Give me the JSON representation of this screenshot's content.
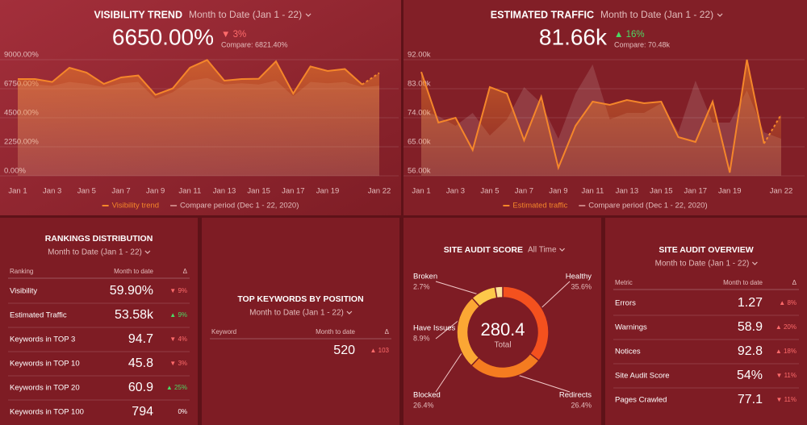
{
  "chart_data": [
    {
      "type": "line",
      "title": "VISIBILITY TREND",
      "subtitle": "Month to Date (Jan 1 - 22)",
      "headline": "6650.00%",
      "delta": "▼ 3%",
      "delta_color": "#ff6b6b",
      "compare": "Compare: 6821.40%",
      "categories": [
        "Jan 1",
        null,
        "Jan 3",
        null,
        "Jan 5",
        null,
        "Jan 7",
        null,
        "Jan 9",
        null,
        "Jan 11",
        null,
        "Jan 13",
        null,
        "Jan 15",
        null,
        "Jan 17",
        null,
        "Jan 19",
        null,
        null,
        "Jan 22"
      ],
      "series": [
        {
          "name": "Visibility trend",
          "color": "#f5862a",
          "values": [
            7125,
            7125,
            6900,
            8000,
            7625,
            6750,
            7250,
            7400,
            5900,
            6400,
            8000,
            8600,
            7000,
            7125,
            7150,
            8500,
            6000,
            8100,
            7750,
            7900,
            6700,
            7600
          ]
        },
        {
          "name": "Compare period (Dec 1 - 22, 2020)",
          "color": "#c98080",
          "values": [
            6800,
            6700,
            6600,
            6900,
            6750,
            6500,
            6800,
            6900,
            5600,
            6100,
            7000,
            7200,
            6700,
            6800,
            6700,
            7000,
            5800,
            6900,
            6800,
            6900,
            6500,
            6600
          ]
        }
      ],
      "ylim": [
        0,
        9000
      ],
      "yticks": [
        {
          "value": 0,
          "label": "0.00%"
        },
        {
          "value": 2250,
          "label": "2250.00%"
        },
        {
          "value": 4500,
          "label": "4500.00%"
        },
        {
          "value": 6750,
          "label": "6750.00%"
        },
        {
          "value": 9000,
          "label": "9000.00%"
        }
      ],
      "grid": true,
      "last_segment_dashed": true
    },
    {
      "type": "line",
      "title": "ESTIMATED TRAFFIC",
      "subtitle": "Month to Date (Jan 1 - 22)",
      "headline": "81.66k",
      "delta": "▲ 16%",
      "delta_color": "#4cd964",
      "compare": "Compare: 70.48k",
      "categories": [
        "Jan 1",
        null,
        "Jan 3",
        null,
        "Jan 5",
        null,
        "Jan 7",
        null,
        "Jan 9",
        null,
        "Jan 11",
        null,
        "Jan 13",
        null,
        "Jan 15",
        null,
        "Jan 17",
        null,
        "Jan 19",
        null,
        null,
        "Jan 22"
      ],
      "series": [
        {
          "name": "Estimated traffic",
          "color": "#f5862a",
          "values": [
            86.7,
            71,
            72.5,
            62.5,
            82,
            80,
            65.5,
            79,
            57,
            70,
            77.5,
            76.5,
            78,
            77,
            77.5,
            66.5,
            65,
            77.5,
            55.5,
            90.5,
            64.5,
            73.5
          ]
        },
        {
          "name": "Compare period (Dec 1 - 22, 2020)",
          "color": "#c98080",
          "values": [
            75,
            73,
            70,
            74,
            67,
            72,
            82,
            77,
            66,
            80,
            89,
            72,
            74,
            74,
            77,
            68,
            84,
            71,
            71,
            81,
            68,
            66
          ]
        }
      ],
      "ylim": [
        56,
        92
      ],
      "yticks": [
        {
          "value": 56,
          "label": "56.00k"
        },
        {
          "value": 65,
          "label": "65.00k"
        },
        {
          "value": 74,
          "label": "74.00k"
        },
        {
          "value": 83,
          "label": "83.00k"
        },
        {
          "value": 92,
          "label": "92.00k"
        }
      ],
      "grid": true,
      "last_segment_dashed": true
    },
    {
      "type": "donut",
      "title": "SITE AUDIT SCORE",
      "subtitle": "All Time",
      "categories": [
        "Healthy",
        "Redirects",
        "Blocked",
        "Have Issues",
        "Broken"
      ],
      "values": [
        35.6,
        26.4,
        26.4,
        8.9,
        2.7
      ],
      "value_labels": [
        "35.6%",
        "26.4%",
        "26.4%",
        "8.9%",
        "2.7%"
      ],
      "colors": [
        "#f4511e",
        "#f57c20",
        "#fba734",
        "#fdc84a",
        "#fde39a"
      ],
      "total": 280.4,
      "total_label": "Total"
    }
  ],
  "tables": [
    {
      "title": "RANKINGS DISTRIBUTION",
      "subtitle": "Month to Date (Jan 1 - 22)",
      "columns": [
        "Ranking",
        "Month to date",
        "Δ"
      ],
      "rows": [
        {
          "label": "Visibility",
          "value": "59.90%",
          "delta": "▼ 9%",
          "delta_color": "#ff6b6b"
        },
        {
          "label": "Estimated Traffic",
          "value": "53.58k",
          "delta": "▲ 9%",
          "delta_color": "#4cd964"
        },
        {
          "label": "Keywords in TOP 3",
          "value": "94.7",
          "delta": "▼ 4%",
          "delta_color": "#ff6b6b"
        },
        {
          "label": "Keywords in TOP 10",
          "value": "45.8",
          "delta": "▼ 3%",
          "delta_color": "#ff6b6b"
        },
        {
          "label": "Keywords in TOP 20",
          "value": "60.9",
          "delta": "▲ 25%",
          "delta_color": "#4cd964"
        },
        {
          "label": "Keywords in TOP 100",
          "value": "794",
          "delta": "0%",
          "delta_color": "#ffffff"
        }
      ]
    },
    {
      "title": "TOP KEYWORDS BY POSITION",
      "subtitle": "Month to Date (Jan 1 - 22)",
      "columns": [
        "Keyword",
        "Month to date",
        "Δ"
      ],
      "rows": [
        {
          "value": "520",
          "delta": "▲ 103",
          "delta_color": "#ff6b6b"
        }
      ]
    },
    {
      "title": "SITE AUDIT OVERVIEW",
      "subtitle": "Month to Date (Jan 1 - 22)",
      "columns": [
        "Metric",
        "Month to date",
        "Δ"
      ],
      "rows": [
        {
          "label": "Errors",
          "value": "1.27",
          "delta": "▲ 8%",
          "delta_color": "#ff6b6b"
        },
        {
          "label": "Warnings",
          "value": "58.9",
          "delta": "▲ 20%",
          "delta_color": "#ff6b6b"
        },
        {
          "label": "Notices",
          "value": "92.8",
          "delta": "▲ 18%",
          "delta_color": "#ff6b6b"
        },
        {
          "label": "Site Audit Score",
          "value": "54%",
          "delta": "▼ 11%",
          "delta_color": "#ff6b6b"
        },
        {
          "label": "Pages Crawled",
          "value": "77.1",
          "delta": "▼ 11%",
          "delta_color": "#ff6b6b"
        }
      ]
    }
  ]
}
